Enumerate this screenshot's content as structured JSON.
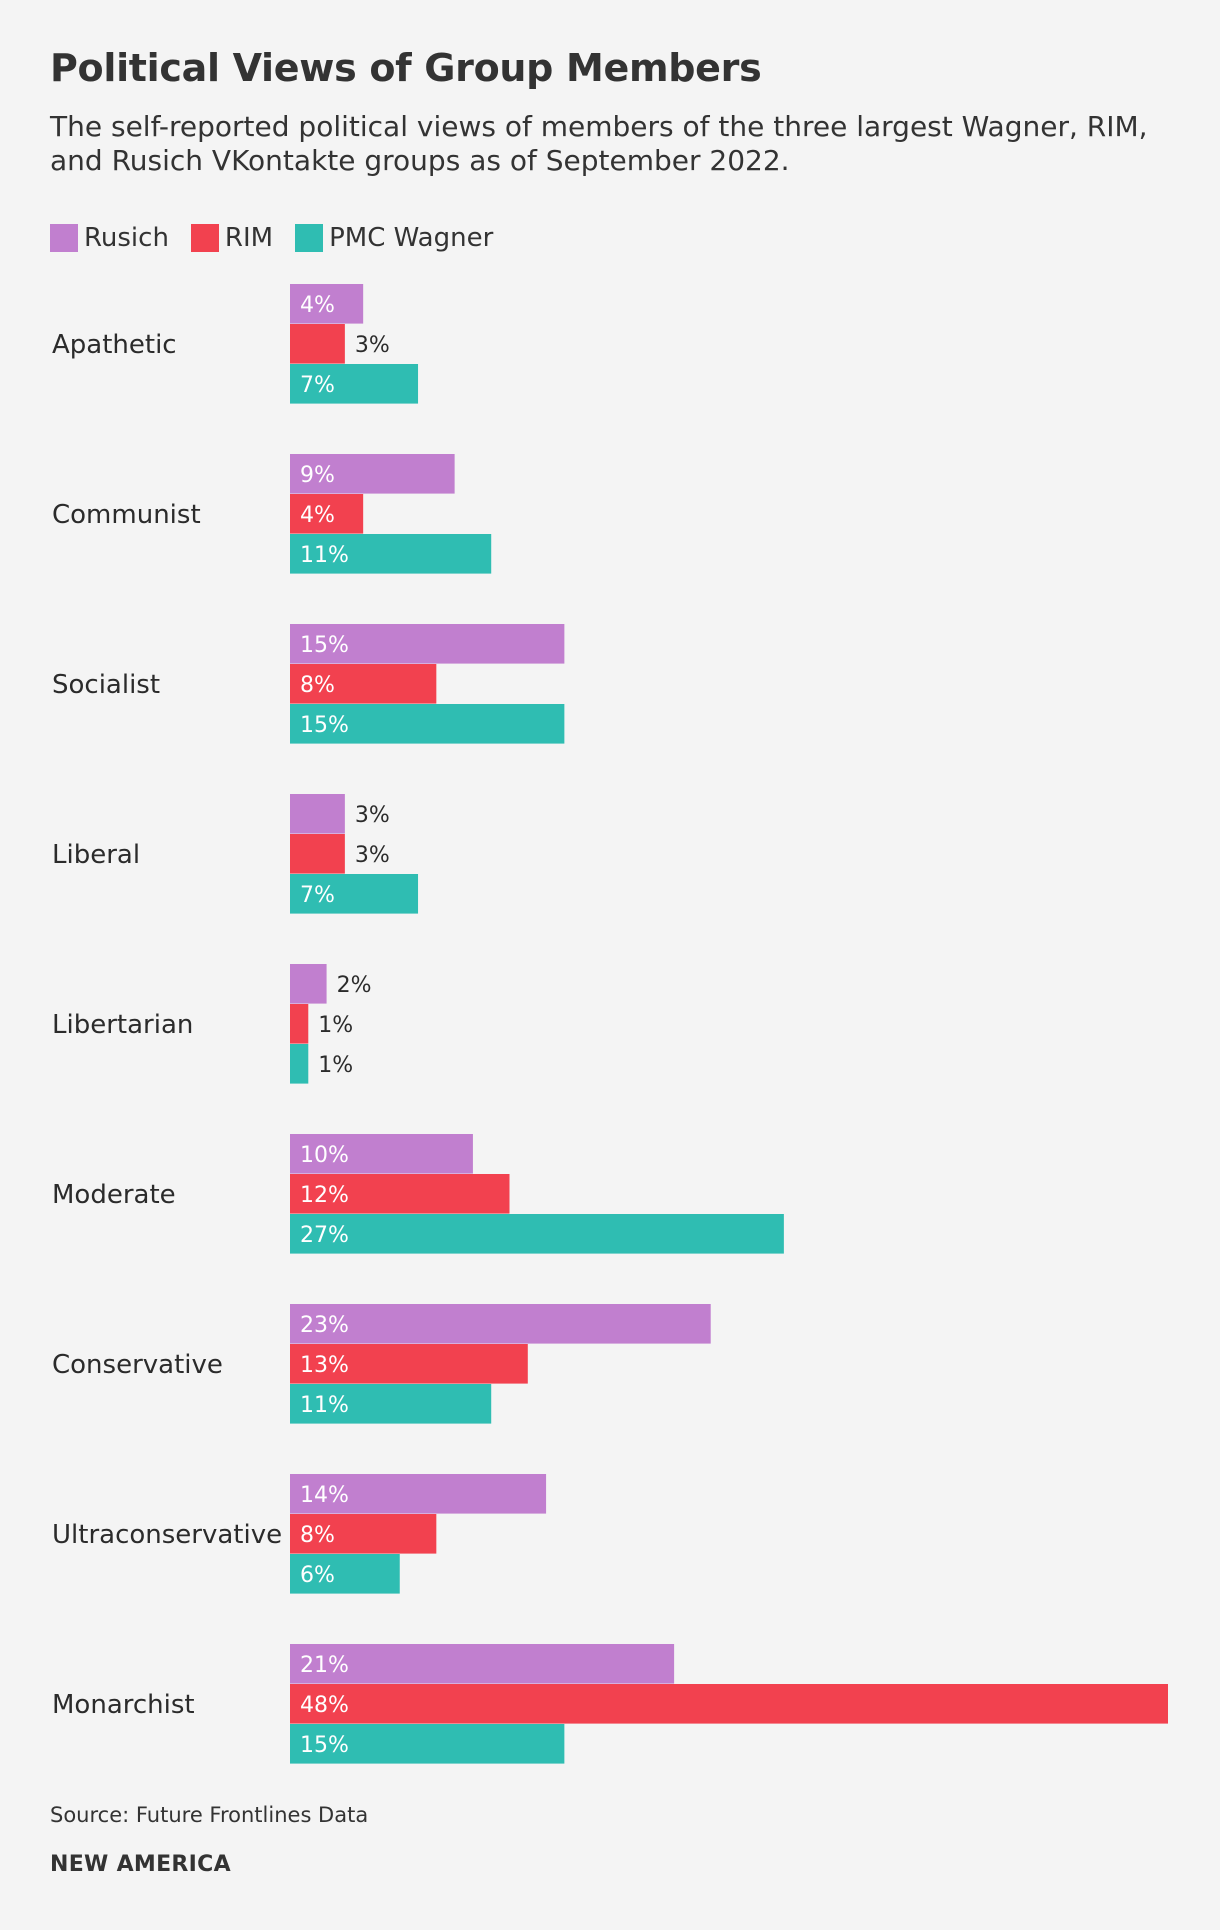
{
  "chart_data": {
    "type": "bar",
    "orientation": "horizontal",
    "title": "Political Views of Group Members",
    "subtitle": "The self-reported political views of members of the three largest Wagner, RIM, and Rusich VKontakte groups as of September 2022.",
    "categories": [
      "Apathetic",
      "Communist",
      "Socialist",
      "Liberal",
      "Libertarian",
      "Moderate",
      "Conservative",
      "Ultraconservative",
      "Monarchist"
    ],
    "series": [
      {
        "name": "Rusich",
        "color": "#c17fcf",
        "values": [
          4,
          9,
          15,
          3,
          2,
          10,
          23,
          14,
          21
        ]
      },
      {
        "name": "RIM",
        "color": "#f2414f",
        "values": [
          3,
          4,
          8,
          3,
          1,
          12,
          13,
          8,
          48
        ]
      },
      {
        "name": "PMC Wagner",
        "color": "#2fbdb2",
        "values": [
          7,
          11,
          15,
          7,
          1,
          27,
          11,
          6,
          15
        ]
      }
    ],
    "value_suffix": "%",
    "xlim": [
      0,
      48
    ],
    "legend": "top-left",
    "grid": false
  },
  "footer": {
    "source": "Source: Future Frontlines Data",
    "brand": "NEW AMERICA"
  }
}
